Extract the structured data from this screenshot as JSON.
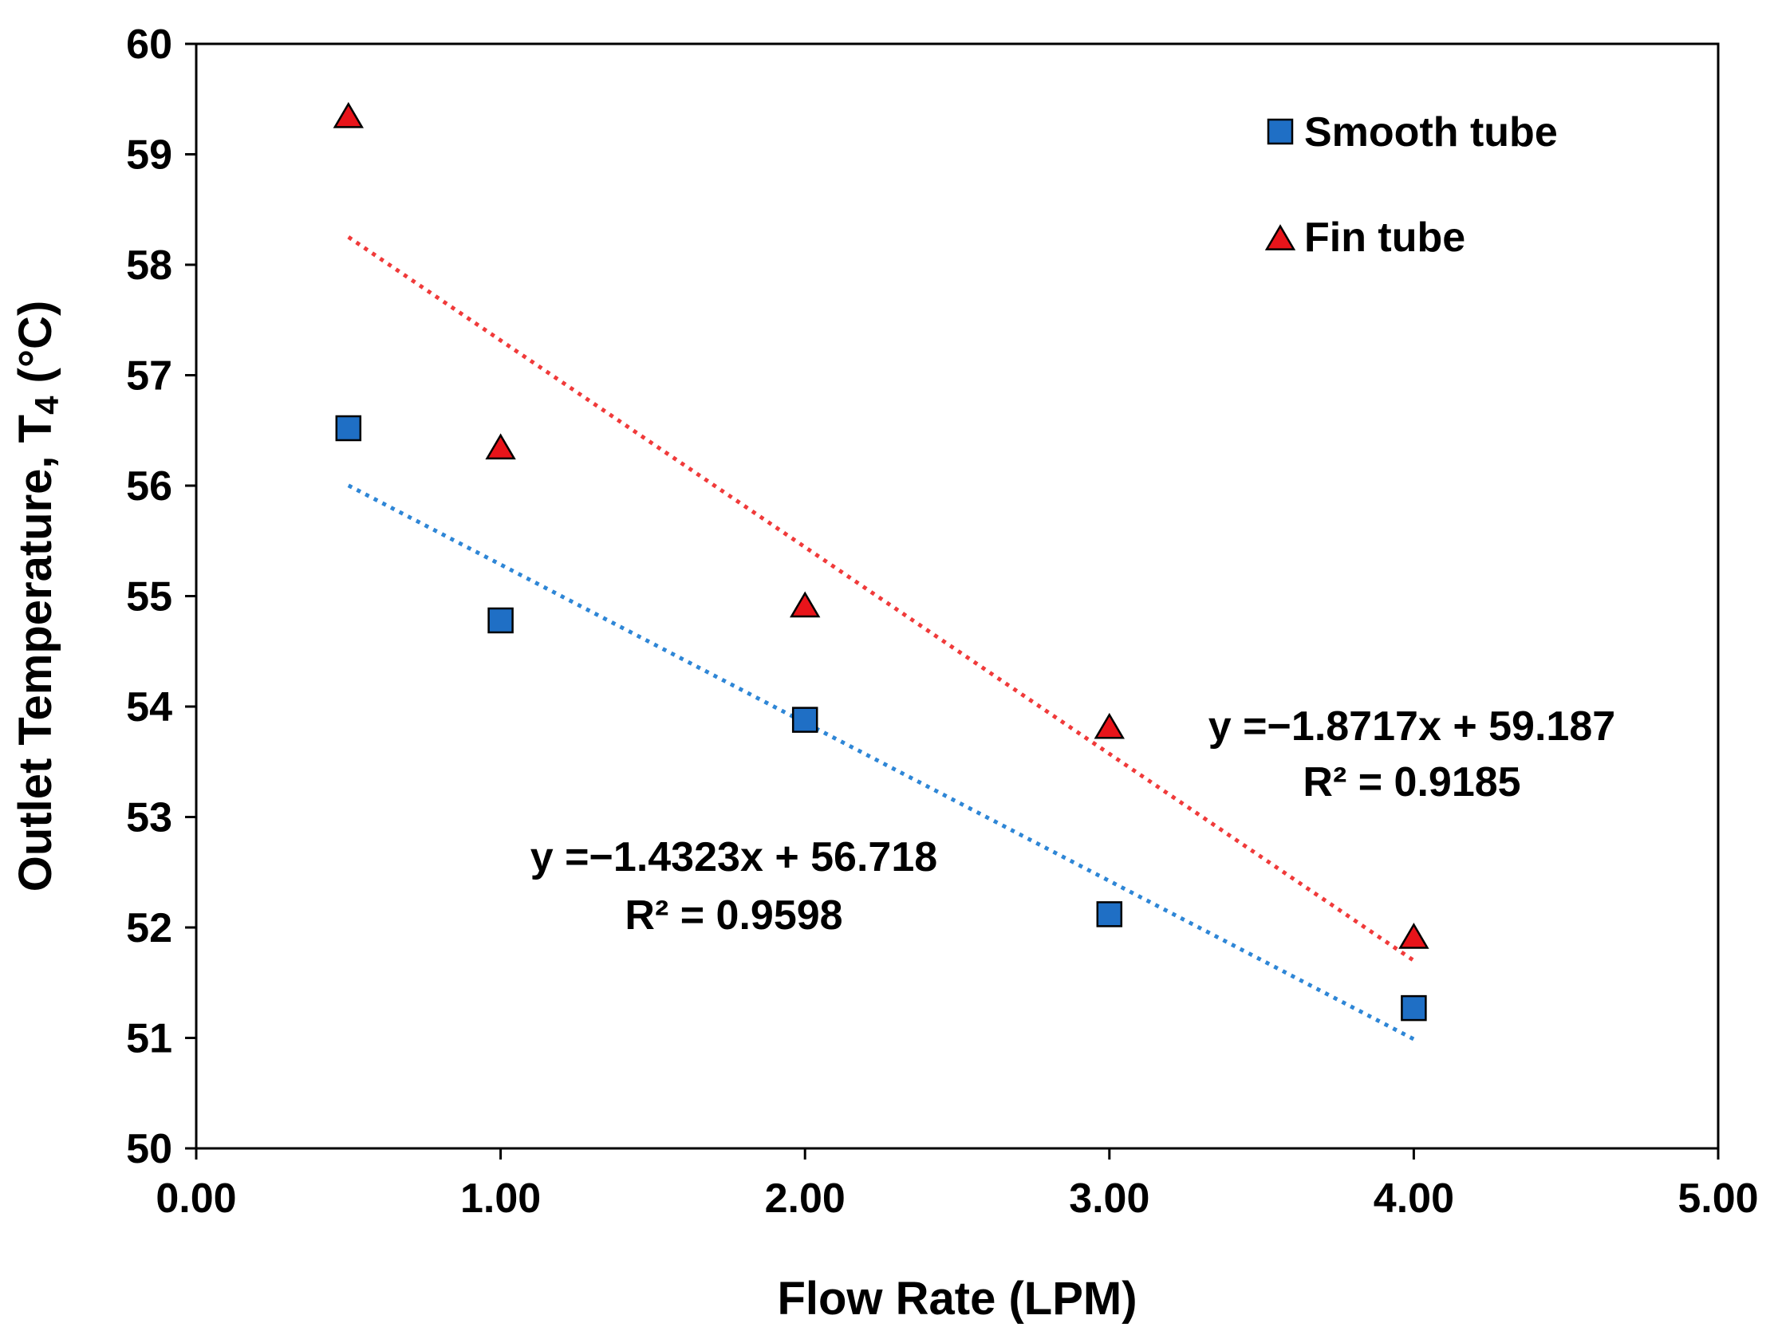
{
  "chart_data": {
    "type": "scatter",
    "xlabel": "Flow Rate (LPM)",
    "ylabel": "Outlet Temperature, T",
    "ylabel_sub": "4",
    "ylabel_suffix": " (°C)",
    "xlim": [
      0,
      5
    ],
    "ylim": [
      50,
      60
    ],
    "x_ticks": [
      0,
      1,
      2,
      3,
      4,
      5
    ],
    "x_tick_labels": [
      "0.00",
      "1.00",
      "2.00",
      "3.00",
      "4.00",
      "5.00"
    ],
    "y_ticks": [
      50,
      51,
      52,
      53,
      54,
      55,
      56,
      57,
      58,
      59,
      60
    ],
    "y_tick_labels": [
      "50",
      "51",
      "52",
      "53",
      "54",
      "55",
      "56",
      "57",
      "58",
      "59",
      "60"
    ],
    "grid": false,
    "legend_position": "top-right",
    "series": [
      {
        "name": "Smooth tube",
        "marker": "square",
        "color": "#1f6fc5",
        "trend_color": "#2e86d6",
        "x": [
          0.5,
          1.0,
          2.0,
          3.0,
          4.0
        ],
        "y": [
          56.52,
          54.78,
          53.88,
          52.12,
          51.27
        ],
        "trendline": {
          "slope": -1.4323,
          "intercept": 56.718,
          "x_range": [
            0.5,
            4.0
          ]
        },
        "equation": "y =−1.4323x + 56.718",
        "r2": "R² = 0.9598"
      },
      {
        "name": "Fin tube",
        "marker": "triangle",
        "color": "#e8141a",
        "trend_color": "#f03a3a",
        "x": [
          0.5,
          1.0,
          2.0,
          3.0,
          4.0
        ],
        "y": [
          59.33,
          56.33,
          54.9,
          53.8,
          51.9
        ],
        "trendline": {
          "slope": -1.8717,
          "intercept": 59.187,
          "x_range": [
            0.5,
            4.0
          ]
        },
        "equation": "y =−1.8717x + 59.187",
        "r2": "R² = 0.9185"
      }
    ]
  }
}
